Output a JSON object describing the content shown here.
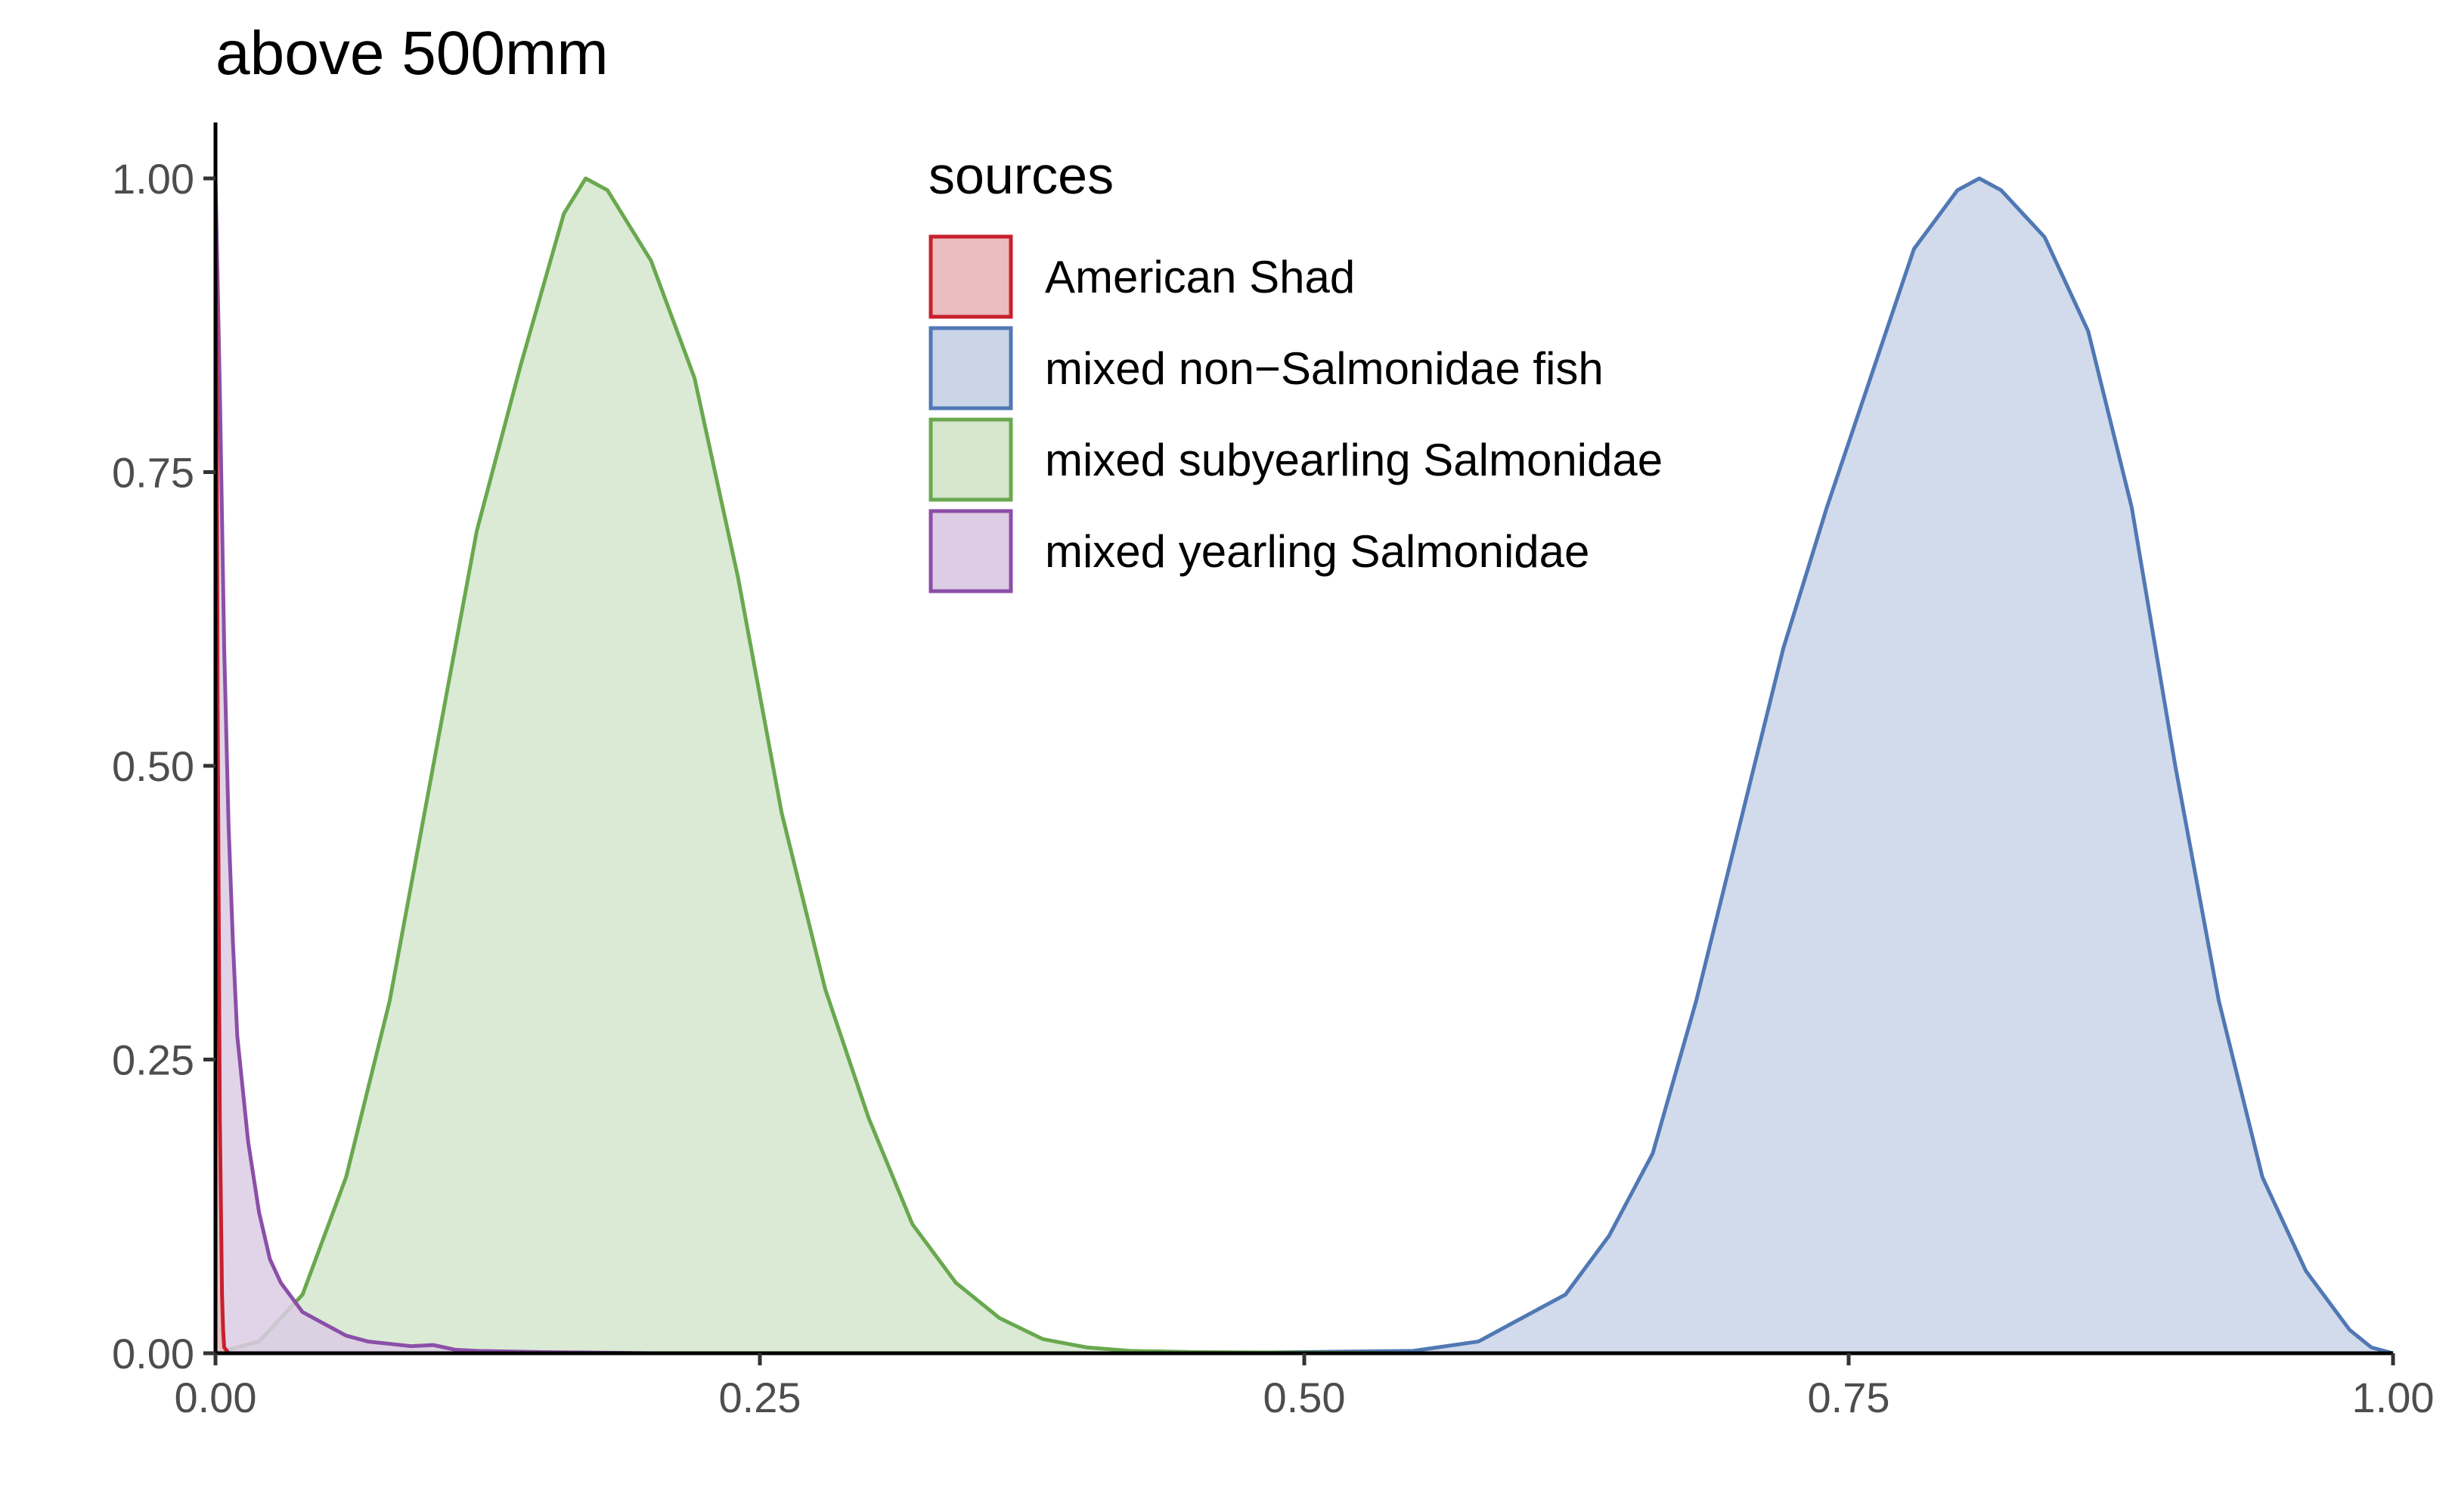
{
  "chart_data": {
    "type": "area",
    "title": "above 500mm",
    "xlabel": "",
    "ylabel": "",
    "xlim": [
      0,
      1
    ],
    "ylim": [
      0,
      1.05
    ],
    "x_ticks": [
      0,
      0.25,
      0.5,
      0.75,
      1
    ],
    "x_tick_labels": [
      "0.00",
      "0.25",
      "0.50",
      "0.75",
      "1.00"
    ],
    "y_ticks": [
      0,
      0.25,
      0.5,
      0.75,
      1
    ],
    "y_tick_labels": [
      "0.00",
      "0.25",
      "0.50",
      "0.75",
      "1.00"
    ],
    "grid": false,
    "legend": {
      "title": "sources",
      "position": "top-center"
    },
    "series": [
      {
        "name": "American Shad",
        "line_color": "#c8202d",
        "fill_color": "#ebbdbe",
        "x": [
          0,
          0.0005,
          0.001,
          0.002,
          0.003,
          0.0035,
          0.004,
          0.006
        ],
        "y": [
          1.0,
          0.85,
          0.55,
          0.2,
          0.05,
          0.02,
          0.005,
          0
        ]
      },
      {
        "name": "mixed non−Salmonidae fish",
        "line_color": "#5078b4",
        "fill_color": "#cad5e8",
        "x": [
          0.45,
          0.55,
          0.58,
          0.6,
          0.62,
          0.64,
          0.66,
          0.68,
          0.7,
          0.72,
          0.74,
          0.76,
          0.78,
          0.8,
          0.81,
          0.82,
          0.83,
          0.84,
          0.86,
          0.88,
          0.9,
          0.92,
          0.94,
          0.96,
          0.98,
          0.99,
          1.0
        ],
        "y": [
          0,
          0.002,
          0.01,
          0.03,
          0.05,
          0.1,
          0.17,
          0.3,
          0.45,
          0.6,
          0.72,
          0.83,
          0.94,
          0.99,
          1.0,
          0.99,
          0.97,
          0.95,
          0.87,
          0.72,
          0.5,
          0.3,
          0.15,
          0.07,
          0.02,
          0.005,
          0
        ]
      },
      {
        "name": "mixed subyearling Salmonidae",
        "line_color": "#6aa84f",
        "fill_color": "#d4e6ce",
        "x": [
          0,
          0.02,
          0.04,
          0.06,
          0.08,
          0.1,
          0.12,
          0.14,
          0.16,
          0.17,
          0.18,
          0.2,
          0.22,
          0.24,
          0.26,
          0.28,
          0.3,
          0.32,
          0.34,
          0.36,
          0.38,
          0.4,
          0.42,
          0.45,
          0.5,
          0.55
        ],
        "y": [
          0,
          0.01,
          0.05,
          0.15,
          0.3,
          0.5,
          0.7,
          0.84,
          0.97,
          1.0,
          0.99,
          0.93,
          0.83,
          0.66,
          0.46,
          0.31,
          0.2,
          0.11,
          0.06,
          0.03,
          0.012,
          0.005,
          0.002,
          0.001,
          0.0005,
          0
        ]
      },
      {
        "name": "mixed yearling Salmonidae",
        "line_color": "#8b4fa8",
        "fill_color": "#dccce4",
        "x": [
          0,
          0.002,
          0.004,
          0.006,
          0.008,
          0.01,
          0.015,
          0.02,
          0.025,
          0.03,
          0.04,
          0.05,
          0.06,
          0.07,
          0.08,
          0.09,
          0.1,
          0.11,
          0.12,
          0.15,
          0.2
        ],
        "y": [
          1.0,
          0.82,
          0.6,
          0.45,
          0.35,
          0.27,
          0.18,
          0.12,
          0.08,
          0.06,
          0.035,
          0.025,
          0.015,
          0.01,
          0.008,
          0.006,
          0.007,
          0.003,
          0.002,
          0.001,
          0
        ]
      }
    ]
  }
}
